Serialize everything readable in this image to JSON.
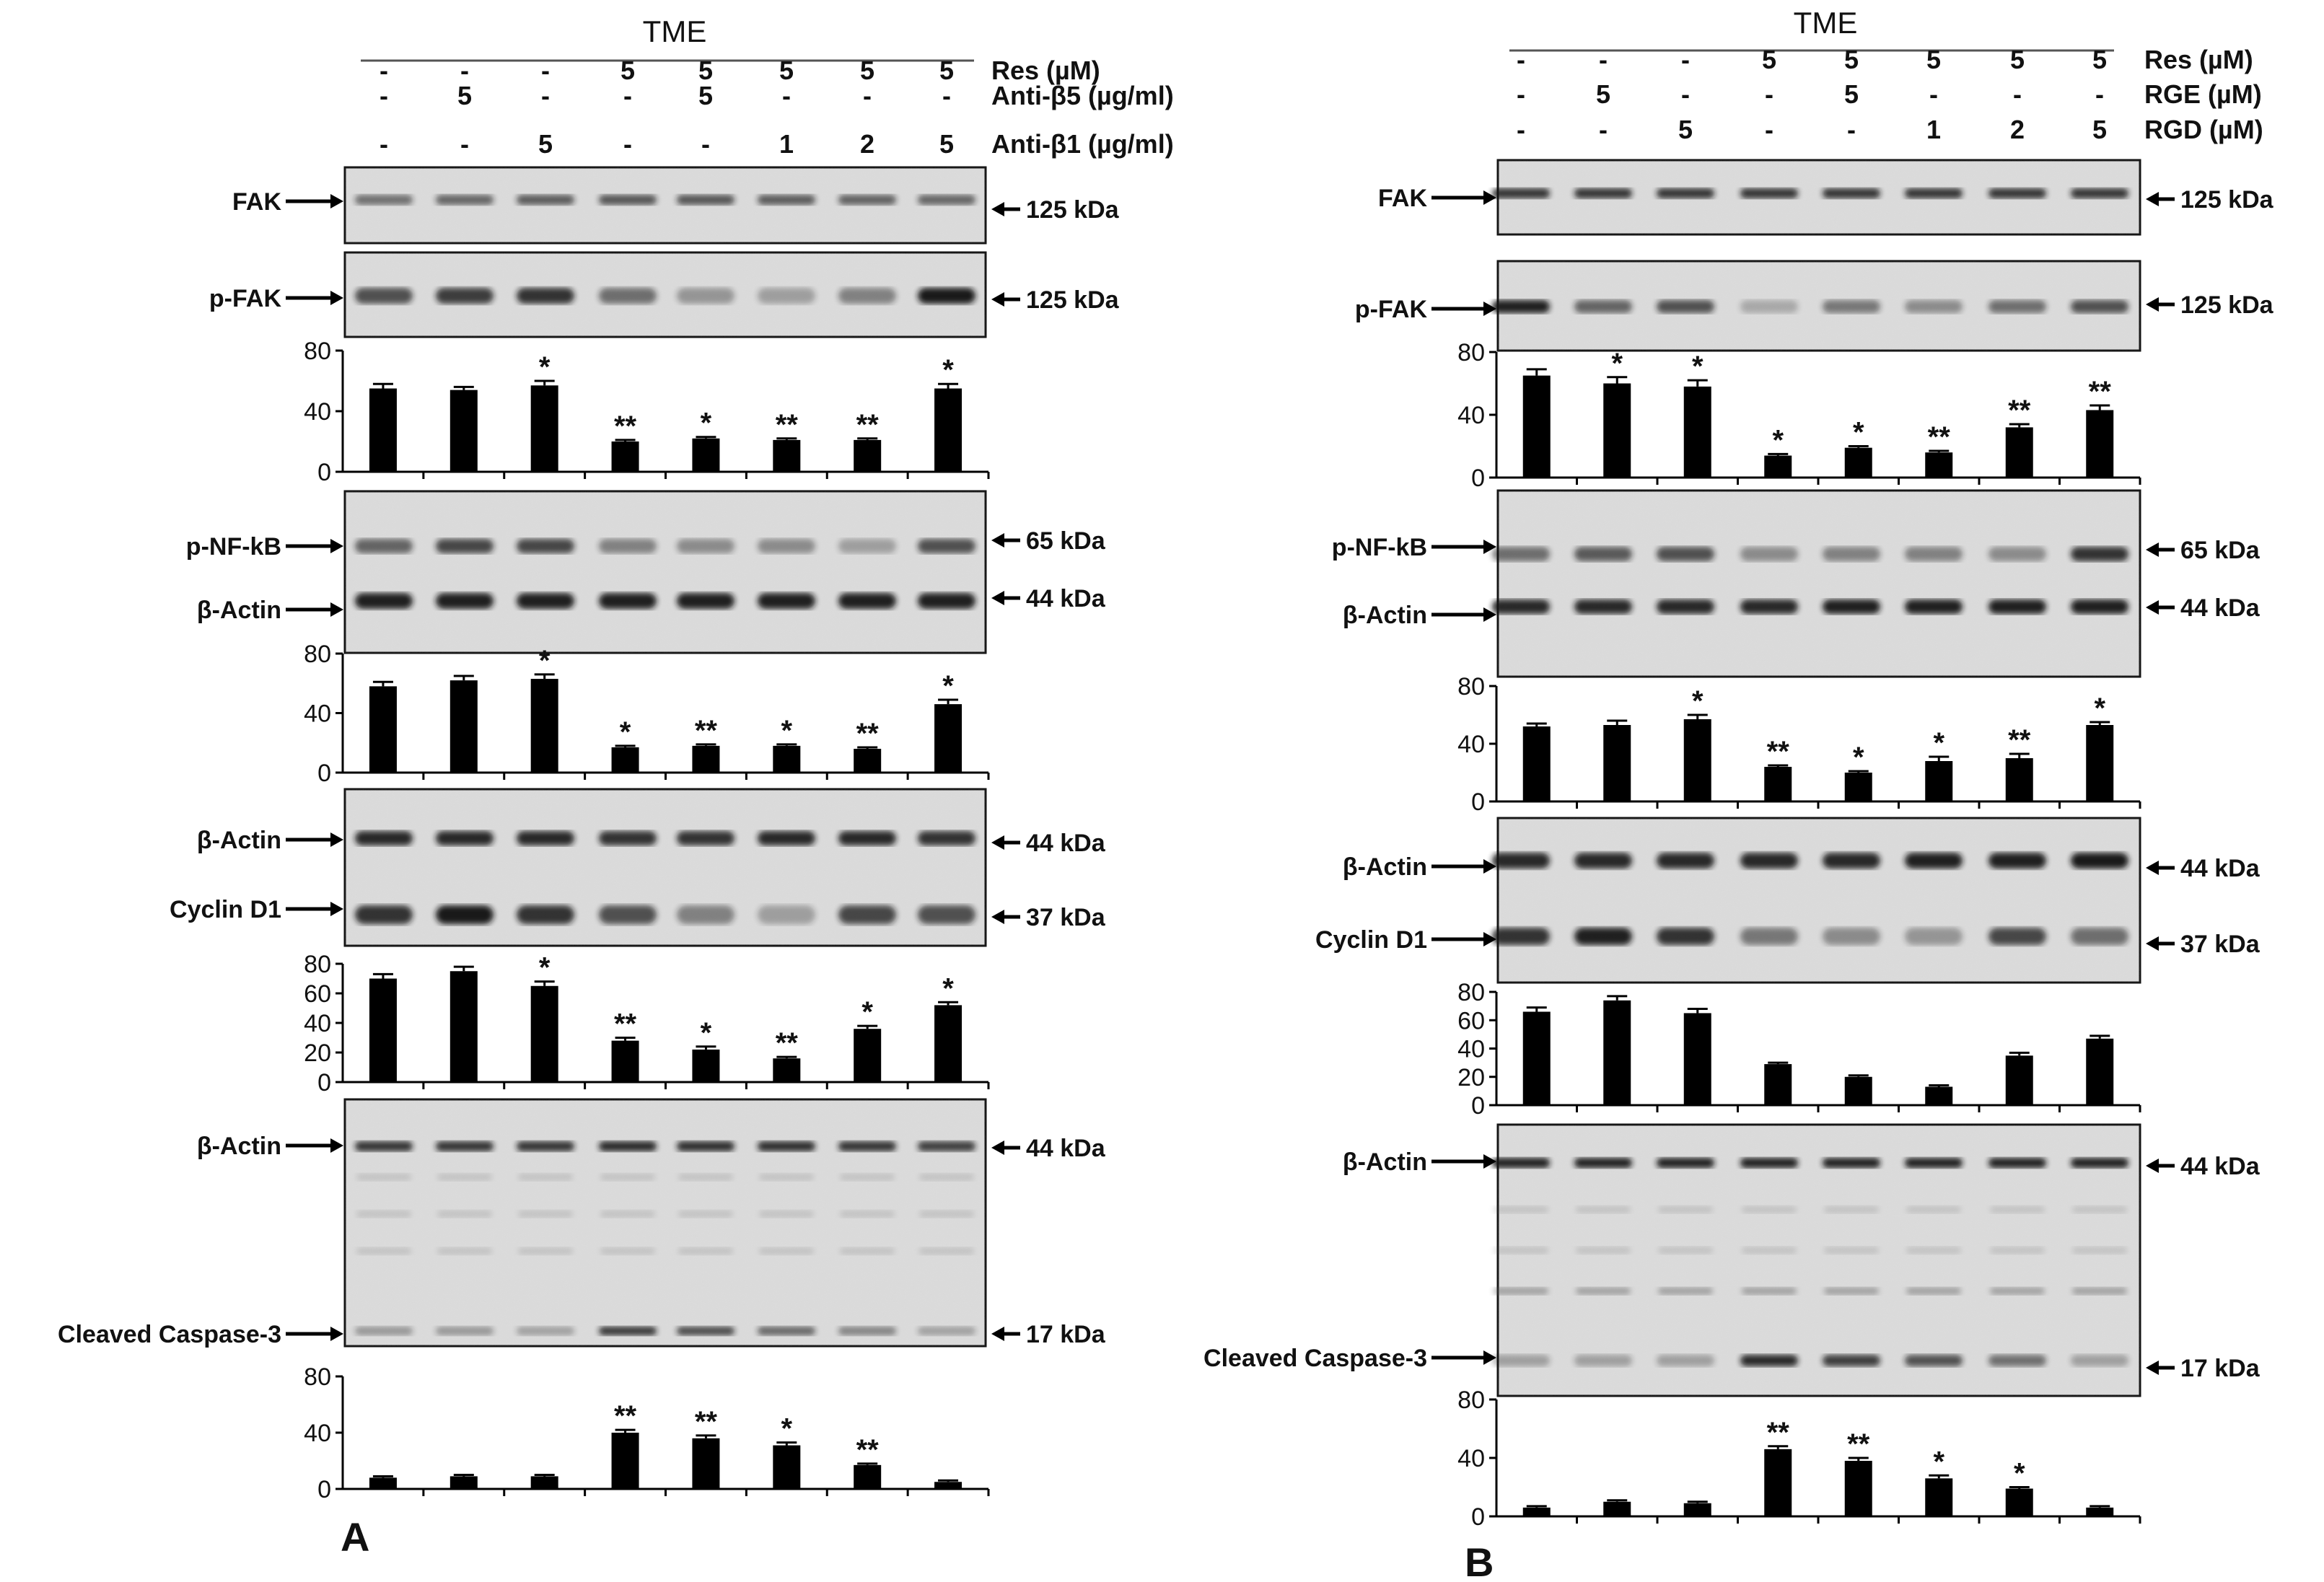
{
  "figure": {
    "panels": [
      {
        "id": "A",
        "letter": "A",
        "header": "TME",
        "conditions": [
          {
            "label": "Res  (µM)",
            "values": [
              "-",
              "-",
              "-",
              "5",
              "5",
              "5",
              "5",
              "5"
            ]
          },
          {
            "label": "Anti-β5 (µg/ml)",
            "values": [
              "-",
              "5",
              "-",
              "-",
              "5",
              "-",
              "-",
              "-"
            ]
          },
          {
            "label": "Anti-β1 (µg/ml)",
            "values": [
              "-",
              "-",
              "5",
              "-",
              "-",
              "1",
              "2",
              "5"
            ]
          }
        ],
        "blots": [
          {
            "name": "fak",
            "labels": [
              "FAK"
            ],
            "kda": [
              "125 kDa"
            ]
          },
          {
            "name": "pfak",
            "labels": [
              "p-FAK"
            ],
            "kda": [
              "125 kDa"
            ]
          },
          {
            "name": "pnfkb",
            "labels": [
              "p-NF-kB",
              "β-Actin"
            ],
            "kda": [
              "65 kDa",
              "44 kDa"
            ]
          },
          {
            "name": "cyclin",
            "labels": [
              "β-Actin",
              "Cyclin D1"
            ],
            "kda": [
              "44 kDa",
              "37 kDa"
            ]
          },
          {
            "name": "caspase",
            "labels": [
              "β-Actin",
              "Cleaved Caspase-3"
            ],
            "kda": [
              "44 kDa",
              "17 kDa"
            ]
          }
        ]
      },
      {
        "id": "B",
        "letter": "B",
        "header": "TME",
        "conditions": [
          {
            "label": "Res  (µM)",
            "values": [
              "-",
              "-",
              "-",
              "5",
              "5",
              "5",
              "5",
              "5"
            ]
          },
          {
            "label": "RGE  (µM)",
            "values": [
              "-",
              "5",
              "-",
              "-",
              "5",
              "-",
              "-",
              "-"
            ]
          },
          {
            "label": "RGD  (µM)",
            "values": [
              "-",
              "-",
              "5",
              "-",
              "-",
              "1",
              "2",
              "5"
            ]
          }
        ],
        "blots": [
          {
            "name": "fak",
            "labels": [
              "FAK"
            ],
            "kda": [
              "125 kDa"
            ]
          },
          {
            "name": "pfak",
            "labels": [
              "p-FAK"
            ],
            "kda": [
              "125 kDa"
            ]
          },
          {
            "name": "pnfkb",
            "labels": [
              "p-NF-kB",
              "β-Actin"
            ],
            "kda": [
              "65 kDa",
              "44 kDa"
            ]
          },
          {
            "name": "cyclin",
            "labels": [
              "β-Actin",
              "Cyclin D1"
            ],
            "kda": [
              "44 kDa",
              "37 kDa"
            ]
          },
          {
            "name": "caspase",
            "labels": [
              "β-Actin",
              "Cleaved Caspase-3"
            ],
            "kda": [
              "44 kDa",
              "17 kDa"
            ]
          }
        ]
      }
    ]
  },
  "chart_data": [
    {
      "type": "bar",
      "panel": "A",
      "name": "A-pFAK",
      "title": "",
      "xlabel": "",
      "ylabel": "",
      "ylim": [
        0,
        80
      ],
      "yticks": [
        0,
        40,
        80
      ],
      "categories": [
        "1",
        "2",
        "3",
        "4",
        "5",
        "6",
        "7",
        "8"
      ],
      "values": [
        55,
        54,
        57,
        20,
        22,
        21,
        21,
        55
      ],
      "errors": [
        3,
        2,
        3,
        1,
        1,
        1,
        1,
        3
      ],
      "stars": [
        "",
        "",
        "*",
        "**",
        "*",
        "**",
        "**",
        "*"
      ]
    },
    {
      "type": "bar",
      "panel": "A",
      "name": "A-pNFkB",
      "title": "",
      "xlabel": "",
      "ylabel": "",
      "ylim": [
        0,
        80
      ],
      "yticks": [
        0,
        40,
        80
      ],
      "categories": [
        "1",
        "2",
        "3",
        "4",
        "5",
        "6",
        "7",
        "8"
      ],
      "values": [
        58,
        62,
        63,
        17,
        18,
        18,
        16,
        46
      ],
      "errors": [
        3,
        3,
        3,
        1,
        1,
        1,
        1,
        3
      ],
      "stars": [
        "",
        "",
        "*",
        "*",
        "**",
        "*",
        "**",
        "*"
      ]
    },
    {
      "type": "bar",
      "panel": "A",
      "name": "A-CyclinD1",
      "title": "",
      "xlabel": "",
      "ylabel": "",
      "ylim": [
        0,
        80
      ],
      "yticks": [
        0,
        20,
        40,
        60,
        80
      ],
      "categories": [
        "1",
        "2",
        "3",
        "4",
        "5",
        "6",
        "7",
        "8"
      ],
      "values": [
        70,
        75,
        65,
        28,
        22,
        16,
        36,
        52
      ],
      "errors": [
        3,
        3,
        3,
        2,
        2,
        1,
        2,
        2
      ],
      "stars": [
        "",
        "",
        "*",
        "**",
        "*",
        "**",
        "*",
        "*"
      ]
    },
    {
      "type": "bar",
      "panel": "A",
      "name": "A-Caspase3",
      "title": "",
      "xlabel": "",
      "ylabel": "",
      "ylim": [
        0,
        80
      ],
      "yticks": [
        0,
        40,
        80
      ],
      "categories": [
        "1",
        "2",
        "3",
        "4",
        "5",
        "6",
        "7",
        "8"
      ],
      "values": [
        8,
        9,
        9,
        40,
        36,
        31,
        17,
        5
      ],
      "errors": [
        1,
        1,
        1,
        2,
        2,
        2,
        1,
        1
      ],
      "stars": [
        "",
        "",
        "",
        "**",
        "**",
        "*",
        "**",
        ""
      ]
    },
    {
      "type": "bar",
      "panel": "B",
      "name": "B-pFAK",
      "title": "",
      "xlabel": "",
      "ylabel": "",
      "ylim": [
        0,
        80
      ],
      "yticks": [
        0,
        40,
        80
      ],
      "categories": [
        "1",
        "2",
        "3",
        "4",
        "5",
        "6",
        "7",
        "8"
      ],
      "values": [
        65,
        60,
        58,
        14,
        19,
        16,
        32,
        43
      ],
      "errors": [
        4,
        4,
        4,
        1,
        1,
        1,
        2,
        3
      ],
      "stars": [
        "",
        "*",
        "*",
        "*",
        "*",
        "**",
        "**",
        "**"
      ]
    },
    {
      "type": "bar",
      "panel": "B",
      "name": "B-pNFkB",
      "title": "",
      "xlabel": "",
      "ylabel": "",
      "ylim": [
        0,
        80
      ],
      "yticks": [
        0,
        40,
        80
      ],
      "categories": [
        "1",
        "2",
        "3",
        "4",
        "5",
        "6",
        "7",
        "8"
      ],
      "values": [
        52,
        53,
        57,
        24,
        20,
        28,
        30,
        53
      ],
      "errors": [
        2,
        3,
        3,
        1,
        1,
        3,
        3,
        2
      ],
      "stars": [
        "",
        "",
        "*",
        "**",
        "*",
        "*",
        "**",
        "*"
      ]
    },
    {
      "type": "bar",
      "panel": "B",
      "name": "B-CyclinD1",
      "title": "",
      "xlabel": "",
      "ylabel": "",
      "ylim": [
        0,
        80
      ],
      "yticks": [
        0,
        20,
        40,
        60,
        80
      ],
      "categories": [
        "1",
        "2",
        "3",
        "4",
        "5",
        "6",
        "7",
        "8"
      ],
      "values": [
        66,
        74,
        65,
        29,
        20,
        13,
        35,
        47
      ],
      "errors": [
        3,
        3,
        3,
        1,
        1,
        1,
        2,
        2
      ],
      "stars": [
        "",
        "",
        "",
        "",
        "",
        "",
        "",
        ""
      ]
    },
    {
      "type": "bar",
      "panel": "B",
      "name": "B-Caspase3",
      "title": "",
      "xlabel": "",
      "ylabel": "",
      "ylim": [
        0,
        80
      ],
      "yticks": [
        0,
        40,
        80
      ],
      "categories": [
        "1",
        "2",
        "3",
        "4",
        "5",
        "6",
        "7",
        "8"
      ],
      "values": [
        6,
        10,
        9,
        46,
        38,
        26,
        19,
        6
      ],
      "errors": [
        1,
        1,
        1,
        2,
        2,
        2,
        1,
        1
      ],
      "stars": [
        "",
        "",
        "",
        "**",
        "**",
        "*",
        "*",
        ""
      ]
    }
  ]
}
